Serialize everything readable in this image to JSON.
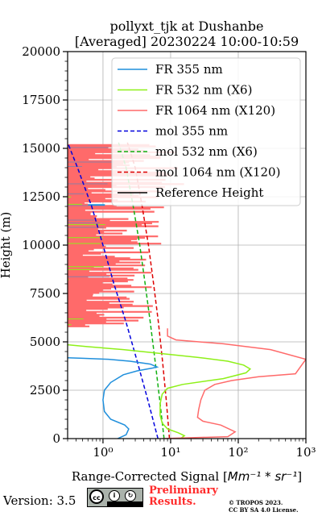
{
  "chart_data": {
    "type": "line",
    "title": [
      "pollyxt_tjk at Dushanbe",
      "[Averaged] 20230224 10:00-10:59"
    ],
    "xlabel_prefix": "Range-Corrected Signal [",
    "xlabel_math": "Mm⁻¹ * sr⁻¹",
    "xlabel_suffix": "]",
    "ylabel": "Height (m)",
    "xscale": "log",
    "xlim": [
      0.3,
      1000
    ],
    "ylim": [
      0,
      20000
    ],
    "xticks": [
      1,
      10,
      100,
      1000
    ],
    "xtick_labels": [
      "10⁰",
      "10¹",
      "10²",
      "10³"
    ],
    "yticks": [
      0,
      2500,
      5000,
      7500,
      10000,
      12500,
      15000,
      17500,
      20000
    ],
    "ytick_labels": [
      "0",
      "2500",
      "5000",
      "7500",
      "10000",
      "12500",
      "15000",
      "17500",
      "20000"
    ],
    "grid": true,
    "legend_position": "top-right",
    "legend": [
      {
        "label": "FR 355 nm",
        "color": "#1f8fdc",
        "style": "solid"
      },
      {
        "label": "FR 532 nm (X6)",
        "color": "#8ef018",
        "style": "solid"
      },
      {
        "label": "FR 1064 nm (X120)",
        "color": "#ff6a6a",
        "style": "solid"
      },
      {
        "label": "mol 355 nm",
        "color": "#0000dd",
        "style": "dashed"
      },
      {
        "label": "mol 532 nm (X6)",
        "color": "#10b010",
        "style": "dashed"
      },
      {
        "label": "mol 1064 nm (X120)",
        "color": "#dd0000",
        "style": "dashed"
      },
      {
        "label": "Reference Height",
        "color": "#000000",
        "style": "solid"
      }
    ],
    "series": [
      {
        "name": "mol 355 nm",
        "style": "dashed",
        "color": "#0000dd",
        "x": [
          6.5,
          4.6,
          3.2,
          2.2,
          1.45,
          1.0,
          0.68,
          0.42,
          0.3
        ],
        "y": [
          0,
          2000,
          4000,
          6000,
          8000,
          10000,
          12000,
          14000,
          15300
        ]
      },
      {
        "name": "mol 532 nm (X6)",
        "style": "dashed",
        "color": "#10b010",
        "x": [
          8.0,
          6.9,
          5.9,
          5.0,
          4.2,
          3.5,
          2.8,
          2.2,
          1.7
        ],
        "y": [
          0,
          2000,
          4000,
          6000,
          8000,
          10000,
          12000,
          14000,
          15300
        ]
      },
      {
        "name": "mol 1064 nm (X120)",
        "style": "dashed",
        "color": "#dd0000",
        "x": [
          9.6,
          8.6,
          7.6,
          6.6,
          5.6,
          4.7,
          3.8,
          3.0,
          2.3
        ],
        "y": [
          0,
          2000,
          4000,
          6000,
          8000,
          10000,
          12000,
          14000,
          15300
        ]
      },
      {
        "name": "FR 355 nm",
        "style": "solid",
        "color": "#1f8fdc",
        "x": [
          1.65,
          2.2,
          2.4,
          2.1,
          1.3,
          1.05,
          1.0,
          1.05,
          1.3,
          2.0,
          3.2,
          5.5,
          6.3,
          5.0,
          2.5,
          1.2,
          0.5,
          0.3
        ],
        "y": [
          0,
          200,
          500,
          700,
          1000,
          1400,
          2000,
          2500,
          2900,
          3300,
          3500,
          3650,
          3700,
          3850,
          4000,
          4100,
          4150,
          4180
        ]
      },
      {
        "name": "FR 532 nm (X6)",
        "style": "solid",
        "color": "#8ef018",
        "x": [
          14,
          16,
          13,
          9,
          7.5,
          7,
          7,
          7.5,
          9,
          15,
          60,
          130,
          150,
          120,
          70,
          25,
          7,
          2,
          0.6,
          0.3
        ],
        "y": [
          0,
          150,
          300,
          500,
          800,
          1200,
          1800,
          2300,
          2600,
          2800,
          3100,
          3400,
          3600,
          3800,
          4000,
          4200,
          4400,
          4600,
          4750,
          4850
        ]
      },
      {
        "name": "FR 1064 nm (X120)",
        "style": "solid",
        "color": "#ff6a6a",
        "x": [
          7.5,
          70,
          90,
          55,
          30,
          25,
          26,
          28,
          32,
          45,
          80,
          200,
          700,
          1000,
          300,
          60,
          12,
          9,
          9,
          9
        ],
        "y": [
          0,
          100,
          350,
          700,
          900,
          1100,
          1500,
          2000,
          2500,
          2800,
          3000,
          3200,
          3350,
          4100,
          4600,
          4900,
          5100,
          5300,
          5500,
          5700
        ]
      }
    ]
  },
  "footer": {
    "version": "Version: 3.5",
    "license_badge_by": "BY",
    "license_badge_sa": "SA",
    "preliminary_line1": "Preliminary",
    "preliminary_line2": "Results.",
    "copyright_line1": "© TROPOS 2023.",
    "copyright_line2": "CC BY SA 4.0 License."
  }
}
